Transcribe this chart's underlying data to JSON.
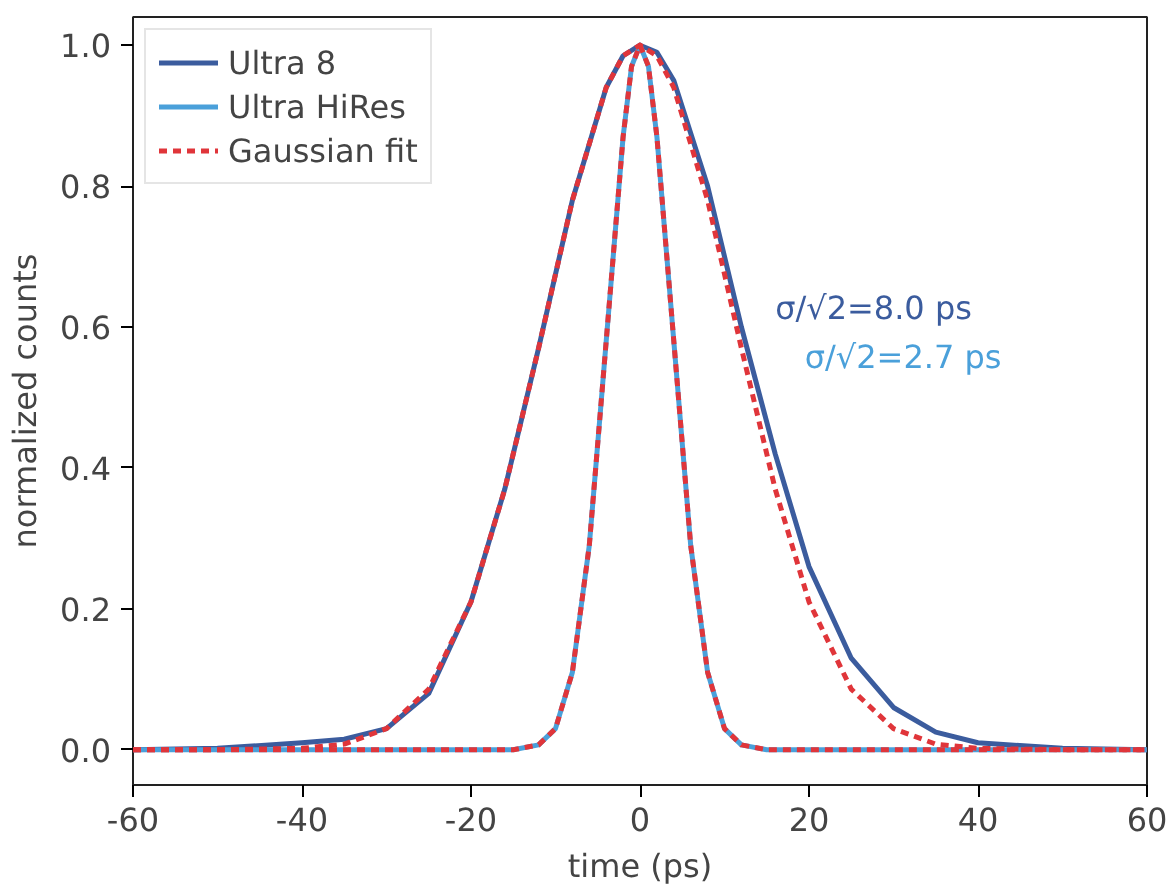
{
  "chart_data": {
    "type": "line",
    "xlabel": "time (ps)",
    "ylabel": "normalized counts",
    "xlim": [
      -60,
      60
    ],
    "xticks": [
      -60,
      -40,
      -20,
      0,
      20,
      40,
      60
    ],
    "ylim": [
      -0.05,
      1.04
    ],
    "yticks": [
      {
        "value": 0,
        "label": "0.0"
      },
      {
        "value": 0.2,
        "label": "0.2"
      },
      {
        "value": 0.4,
        "label": "0.4"
      },
      {
        "value": 0.6,
        "label": "0.6"
      },
      {
        "value": 0.8,
        "label": "0.8"
      },
      {
        "value": 1,
        "label": "1.0"
      }
    ],
    "grid": false,
    "legend": "top left",
    "marker": "none",
    "series": [
      {
        "name": "Ultra 8",
        "color": "#3b5c9e",
        "line_style": "solid",
        "x": [
          -60,
          -50,
          -40,
          -35,
          -30,
          -25,
          -20,
          -16,
          -12,
          -8,
          -4,
          -2,
          0,
          2,
          4,
          8,
          12,
          16,
          20,
          25,
          30,
          35,
          40,
          50,
          60
        ],
        "values": [
          0,
          0.002,
          0.01,
          0.015,
          0.03,
          0.08,
          0.21,
          0.37,
          0.57,
          0.78,
          0.94,
          0.985,
          1.0,
          0.99,
          0.95,
          0.8,
          0.6,
          0.42,
          0.26,
          0.13,
          0.06,
          0.025,
          0.01,
          0.002,
          0
        ]
      },
      {
        "name": "Ultra HiRes",
        "color": "#4aa0da",
        "line_style": "solid",
        "x": [
          -60,
          -20,
          -15,
          -12,
          -10,
          -8,
          -6,
          -4,
          -2,
          -1,
          0,
          1,
          2,
          4,
          6,
          8,
          10,
          12,
          15,
          20,
          60
        ],
        "values": [
          0,
          0,
          0,
          0.007,
          0.03,
          0.11,
          0.29,
          0.58,
          0.87,
          0.97,
          1.0,
          0.97,
          0.87,
          0.58,
          0.29,
          0.11,
          0.03,
          0.007,
          0,
          0,
          0
        ]
      },
      {
        "name": "Gaussian fit",
        "color": "#e0353a",
        "line_style": "dashed",
        "x": [
          -60,
          -50,
          -40,
          -35,
          -30,
          -25,
          -20,
          -16,
          -12,
          -8,
          -4,
          -2,
          0,
          2,
          4,
          8,
          12,
          16,
          20,
          25,
          30,
          35,
          40,
          50,
          60
        ],
        "values": [
          0,
          0,
          0.002,
          0.008,
          0.03,
          0.086,
          0.21,
          0.37,
          0.57,
          0.78,
          0.94,
          0.985,
          1.0,
          0.985,
          0.94,
          0.78,
          0.57,
          0.37,
          0.21,
          0.086,
          0.03,
          0.008,
          0.002,
          0,
          0
        ]
      },
      {
        "color": "#e0353a",
        "line_style": "dashed",
        "x": [
          -60,
          -20,
          -15,
          -12,
          -10,
          -8,
          -6,
          -4,
          -2,
          -1,
          0,
          1,
          2,
          4,
          6,
          8,
          10,
          12,
          15,
          20,
          60
        ],
        "values": [
          0,
          0,
          0,
          0.007,
          0.03,
          0.11,
          0.29,
          0.58,
          0.87,
          0.97,
          1.0,
          0.97,
          0.87,
          0.58,
          0.29,
          0.11,
          0.03,
          0.007,
          0,
          0,
          0
        ]
      }
    ],
    "annotations": [
      "σ/√2=8.0 ps",
      "σ/√2=2.7 ps"
    ]
  }
}
